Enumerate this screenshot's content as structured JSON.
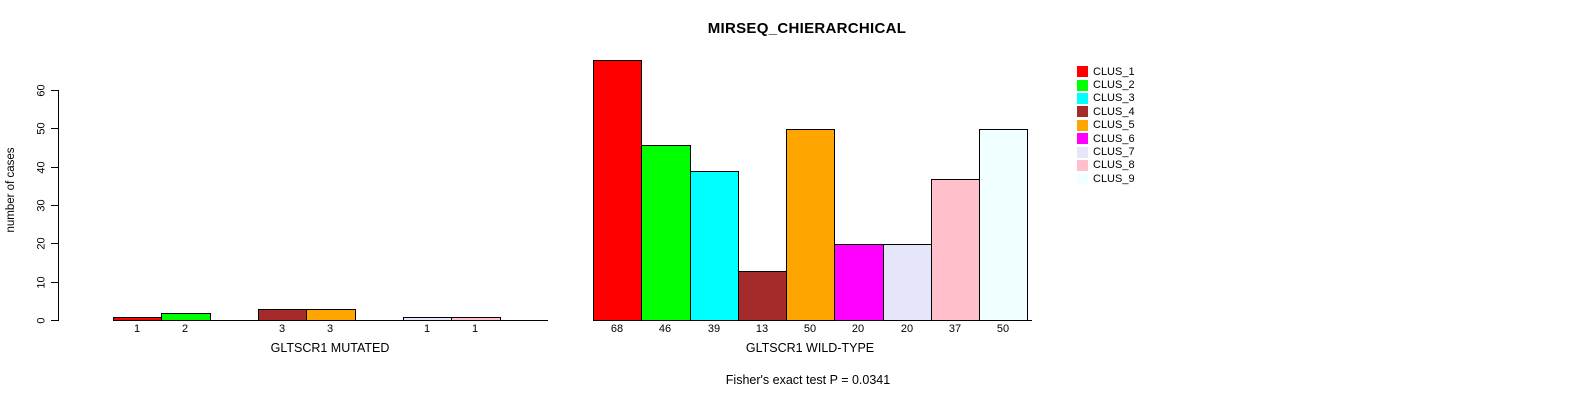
{
  "title": {
    "text": "MIRSEQ_CHIERARCHICAL"
  },
  "footer": {
    "text": "Fisher's exact test P = 0.0341"
  },
  "legend": {
    "position": "right",
    "items": [
      {
        "label": "CLUS_1",
        "color": "#FF0000"
      },
      {
        "label": "CLUS_2",
        "color": "#00FF00"
      },
      {
        "label": "CLUS_3",
        "color": "#00FFFF"
      },
      {
        "label": "CLUS_4",
        "color": "#A52A2A"
      },
      {
        "label": "CLUS_5",
        "color": "#FFA500"
      },
      {
        "label": "CLUS_6",
        "color": "#FF00FF"
      },
      {
        "label": "CLUS_7",
        "color": "#E6E6FA"
      },
      {
        "label": "CLUS_8",
        "color": "#FFC0CB"
      },
      {
        "label": "CLUS_9",
        "color": "#F0FFFF"
      }
    ]
  },
  "chart_data": [
    {
      "type": "bar",
      "panel": "left",
      "xlabel": "GLTSCR1 MUTATED",
      "ylabel": "number of cases",
      "ylim": [
        0,
        60
      ],
      "yticks": [
        0,
        10,
        20,
        30,
        40,
        50,
        60
      ],
      "grid": false,
      "show_y_axis": true,
      "categories": [
        "CLUS_1",
        "CLUS_2",
        "CLUS_3",
        "CLUS_4",
        "CLUS_5",
        "CLUS_6",
        "CLUS_7",
        "CLUS_8",
        "CLUS_9"
      ],
      "values": [
        1,
        2,
        0,
        3,
        3,
        0,
        1,
        1,
        0
      ],
      "bar_labels": [
        "1",
        "2",
        "",
        "3",
        "3",
        "",
        "1",
        "1",
        ""
      ],
      "colors": [
        "#FF0000",
        "#00FF00",
        "#00FFFF",
        "#A52A2A",
        "#FFA500",
        "#FF00FF",
        "#E6E6FA",
        "#FFC0CB",
        "#F0FFFF"
      ]
    },
    {
      "type": "bar",
      "panel": "right",
      "xlabel": "GLTSCR1 WILD-TYPE",
      "ylabel": "number of cases",
      "ylim": [
        0,
        68
      ],
      "yticks": [],
      "grid": false,
      "show_y_axis": false,
      "categories": [
        "CLUS_1",
        "CLUS_2",
        "CLUS_3",
        "CLUS_4",
        "CLUS_5",
        "CLUS_6",
        "CLUS_7",
        "CLUS_8",
        "CLUS_9"
      ],
      "values": [
        68,
        46,
        39,
        13,
        50,
        20,
        20,
        37,
        50
      ],
      "bar_labels": [
        "68",
        "46",
        "39",
        "13",
        "50",
        "20",
        "20",
        "37",
        "50"
      ],
      "colors": [
        "#FF0000",
        "#00FF00",
        "#00FFFF",
        "#A52A2A",
        "#FFA500",
        "#FF00FF",
        "#E6E6FA",
        "#FFC0CB",
        "#F0FFFF"
      ]
    }
  ]
}
